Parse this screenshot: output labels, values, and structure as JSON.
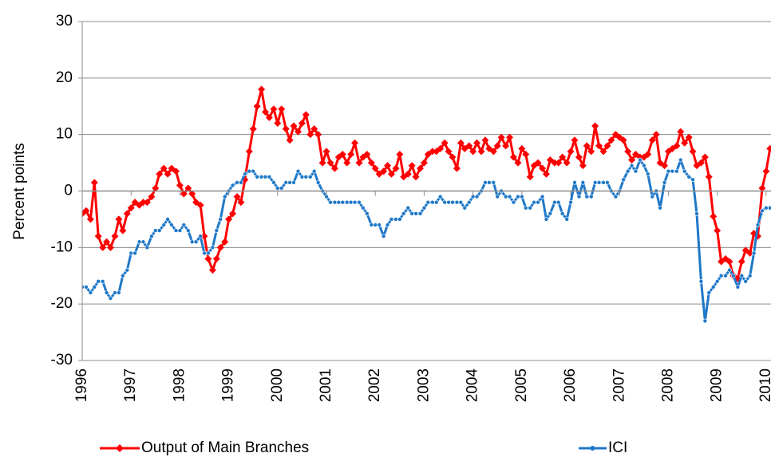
{
  "chart_data": {
    "type": "line",
    "y_label": "Percent points",
    "xlim": [
      1996,
      2010.1
    ],
    "xticks": [
      1996,
      1997,
      1998,
      1999,
      2000,
      2001,
      2002,
      2003,
      2004,
      2005,
      2006,
      2007,
      2008,
      2009,
      2010
    ],
    "ylim": [
      -30,
      30
    ],
    "yticks": [
      -30,
      -20,
      -10,
      0,
      10,
      20,
      30
    ],
    "grid": true,
    "legend": "bottom",
    "x": [
      1996.0,
      1996.08,
      1996.17,
      1996.25,
      1996.33,
      1996.42,
      1996.5,
      1996.58,
      1996.67,
      1996.75,
      1996.83,
      1996.92,
      1997.0,
      1997.08,
      1997.17,
      1997.25,
      1997.33,
      1997.42,
      1997.5,
      1997.58,
      1997.67,
      1997.75,
      1997.83,
      1997.92,
      1998.0,
      1998.08,
      1998.17,
      1998.25,
      1998.33,
      1998.42,
      1998.5,
      1998.58,
      1998.67,
      1998.75,
      1998.83,
      1998.92,
      1999.0,
      1999.08,
      1999.17,
      1999.25,
      1999.33,
      1999.42,
      1999.5,
      1999.58,
      1999.67,
      1999.75,
      1999.83,
      1999.92,
      2000.0,
      2000.08,
      2000.17,
      2000.25,
      2000.33,
      2000.42,
      2000.5,
      2000.58,
      2000.67,
      2000.75,
      2000.83,
      2000.92,
      2001.0,
      2001.08,
      2001.17,
      2001.25,
      2001.33,
      2001.42,
      2001.5,
      2001.58,
      2001.67,
      2001.75,
      2001.83,
      2001.92,
      2002.0,
      2002.08,
      2002.17,
      2002.25,
      2002.33,
      2002.42,
      2002.5,
      2002.58,
      2002.67,
      2002.75,
      2002.83,
      2002.92,
      2003.0,
      2003.08,
      2003.17,
      2003.25,
      2003.33,
      2003.42,
      2003.5,
      2003.58,
      2003.67,
      2003.75,
      2003.83,
      2003.92,
      2004.0,
      2004.08,
      2004.17,
      2004.25,
      2004.33,
      2004.42,
      2004.5,
      2004.58,
      2004.67,
      2004.75,
      2004.83,
      2004.92,
      2005.0,
      2005.08,
      2005.17,
      2005.25,
      2005.33,
      2005.42,
      2005.5,
      2005.58,
      2005.67,
      2005.75,
      2005.83,
      2005.92,
      2006.0,
      2006.08,
      2006.17,
      2006.25,
      2006.33,
      2006.42,
      2006.5,
      2006.58,
      2006.67,
      2006.75,
      2006.83,
      2006.92,
      2007.0,
      2007.08,
      2007.17,
      2007.25,
      2007.33,
      2007.42,
      2007.5,
      2007.58,
      2007.67,
      2007.75,
      2007.83,
      2007.92,
      2008.0,
      2008.08,
      2008.17,
      2008.25,
      2008.33,
      2008.42,
      2008.5,
      2008.58,
      2008.67,
      2008.75,
      2008.83,
      2008.92,
      2009.0,
      2009.08,
      2009.17,
      2009.25,
      2009.33,
      2009.42,
      2009.5,
      2009.58,
      2009.67,
      2009.75,
      2009.83,
      2009.92,
      2010.0,
      2010.08
    ],
    "series": [
      {
        "name": "Output of Main Branches",
        "color": "#ff0000",
        "marker": "diamond",
        "values": [
          -4,
          -3.5,
          -5,
          1.5,
          -8,
          -10,
          -9,
          -10,
          -8,
          -5,
          -7,
          -4,
          -3,
          -2,
          -2.5,
          -2,
          -2,
          -1,
          0.5,
          3,
          4,
          3,
          4,
          3.5,
          1,
          -0.5,
          0.5,
          -0.5,
          -2,
          -2.5,
          -8,
          -12,
          -14,
          -12,
          -10,
          -9,
          -5,
          -4,
          -1,
          -2,
          2,
          7,
          11,
          15,
          18,
          14,
          13,
          14.5,
          12,
          14.5,
          11,
          9,
          11.5,
          10.5,
          12,
          13.5,
          10,
          11,
          10,
          5,
          7,
          5,
          4,
          6,
          6.5,
          5,
          6.5,
          8.5,
          5,
          6,
          6.5,
          5,
          4,
          3,
          3.5,
          4.5,
          3,
          4,
          6.5,
          2.5,
          3,
          4.5,
          2.5,
          4,
          5,
          6.5,
          7,
          7,
          7.5,
          8.5,
          7,
          6,
          4,
          8.5,
          7.5,
          8,
          7,
          8.5,
          7,
          9,
          7.5,
          7,
          8,
          9.5,
          8,
          9.5,
          6,
          5,
          7.5,
          6.5,
          2.5,
          4.5,
          5,
          4,
          3,
          5.5,
          5,
          5,
          6,
          5,
          7,
          9,
          6,
          4.5,
          8,
          7,
          11.5,
          8,
          7,
          8,
          9,
          10,
          9.5,
          9,
          7,
          5.5,
          6.5,
          6,
          6,
          6.5,
          9,
          10,
          5,
          4.5,
          7,
          7.5,
          8,
          10.5,
          8.5,
          9.5,
          7,
          4.5,
          5,
          6,
          2.5,
          -4.5,
          -7,
          -12.5,
          -12,
          -12.5,
          -15,
          -15.5,
          -12.5,
          -10.5,
          -11,
          -7.5,
          -8,
          0.5,
          3.5,
          7.5
        ]
      },
      {
        "name": "ICI",
        "color": "#1f78c8",
        "marker": "circle",
        "values": [
          -17,
          -17,
          -18,
          -17,
          -16,
          -16,
          -18,
          -19,
          -18,
          -18,
          -15,
          -14,
          -11,
          -11,
          -9,
          -9,
          -10,
          -8,
          -7,
          -7,
          -6,
          -5,
          -6,
          -7,
          -7,
          -6,
          -7,
          -9,
          -9,
          -8,
          -11,
          -11,
          -10,
          -7,
          -5,
          -1,
          0,
          1,
          1.5,
          1.5,
          3,
          3.5,
          3.5,
          2.5,
          2.5,
          2.5,
          2.5,
          1.5,
          0.5,
          0.5,
          1.5,
          1.5,
          1.5,
          3.5,
          2.5,
          2.5,
          2.5,
          3.5,
          1.5,
          0,
          -1,
          -2,
          -2,
          -2,
          -2,
          -2,
          -2,
          -2,
          -2,
          -3,
          -4,
          -6,
          -6,
          -6,
          -8,
          -6,
          -5,
          -5,
          -5,
          -4,
          -3,
          -4,
          -4,
          -4,
          -3,
          -2,
          -2,
          -2,
          -1,
          -2,
          -2,
          -2,
          -2,
          -2,
          -3,
          -2,
          -1,
          -1,
          0,
          1.5,
          1.5,
          1.5,
          -1,
          0,
          -1,
          -1,
          -2,
          -1,
          -1,
          -3,
          -3,
          -2,
          -2,
          -1,
          -5,
          -4,
          -2,
          -2,
          -4,
          -5,
          -2,
          1.5,
          -1,
          1.5,
          -1,
          -1,
          1.5,
          1.5,
          1.5,
          1.5,
          0,
          -1,
          0,
          2,
          3.5,
          4.5,
          3.5,
          5.5,
          4.5,
          3,
          -1,
          0,
          -3,
          1.5,
          3.5,
          3.5,
          3.5,
          5.5,
          3.5,
          2.5,
          2,
          -4,
          -16,
          -23,
          -18,
          -17,
          -16,
          -15,
          -15,
          -14,
          -15,
          -17,
          -15,
          -16,
          -15,
          -11,
          -6,
          -3.5,
          -3,
          -3
        ]
      }
    ]
  }
}
